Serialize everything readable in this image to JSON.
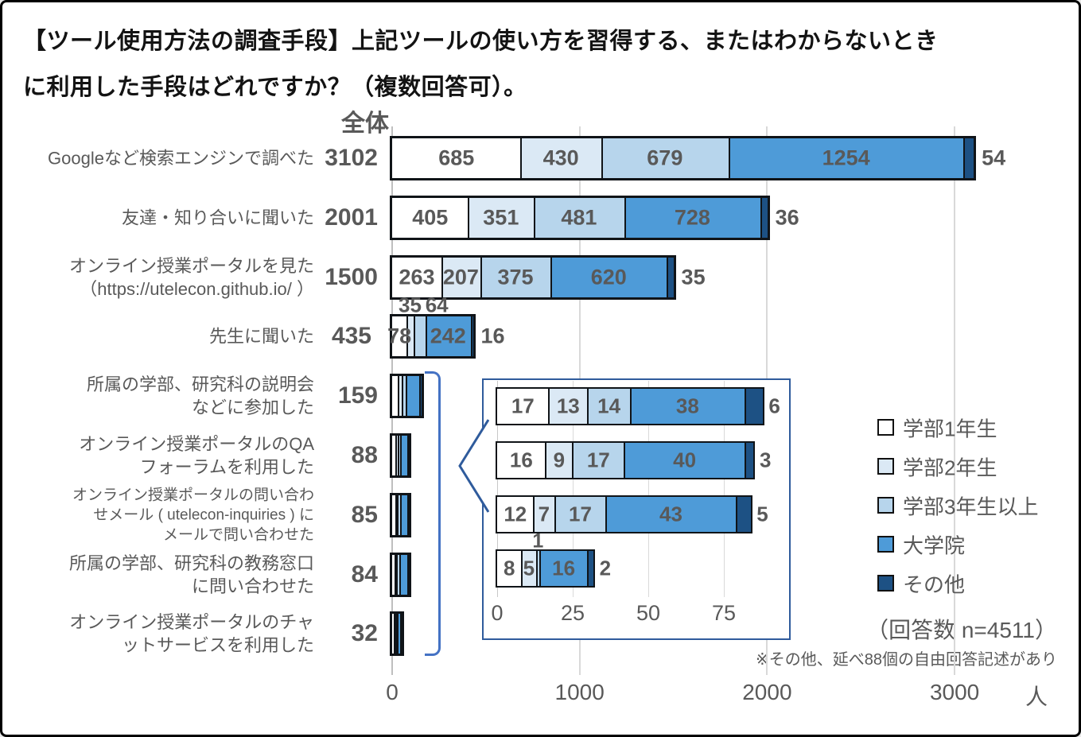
{
  "title": {
    "line1": "【ツール使用方法の調査手段】上記ツールの使い方を習得する、またはわからないとき",
    "line2": "に利用した手段はどれですか？（複数回答可）。"
  },
  "header_total": "全体",
  "respondents_note": "（回答数 n=4511）",
  "footnote": "※その他、延べ88個の自由回答記述があり",
  "colors": {
    "series": [
      "#FFFFFF",
      "#DBE9F5",
      "#B7D5EC",
      "#4E9BD8",
      "#1D5184"
    ],
    "bar_border": "#101418",
    "grid": "#D9D9D9",
    "axis_line": "#BFBFBF",
    "text_gray": "#595959",
    "bracket": "#4472C4",
    "inset_border": "#2F5B9C"
  },
  "legend": {
    "items": [
      {
        "label": "学部1年生",
        "color": "#FFFFFF"
      },
      {
        "label": "学部2年生",
        "color": "#DBE9F5"
      },
      {
        "label": "学部3年生以上",
        "color": "#B7D5EC"
      },
      {
        "label": "大学院",
        "color": "#4E9BD8"
      },
      {
        "label": "その他",
        "color": "#1D5184"
      }
    ]
  },
  "x_axis": {
    "ticks": [
      0,
      1000,
      2000,
      3000
    ],
    "unit": "人"
  },
  "chart_data": {
    "type": "bar",
    "orientation": "horizontal",
    "stacked": true,
    "series_names": [
      "学部1年生",
      "学部2年生",
      "学部3年生以上",
      "大学院",
      "その他"
    ],
    "xlim_main": [
      0,
      3000
    ],
    "xlim_inset": [
      0,
      75
    ],
    "rows": [
      {
        "label_lines": [
          "Googleなど検索エンジンで調べた"
        ],
        "total": 3102,
        "values": [
          685,
          430,
          679,
          1254,
          54
        ]
      },
      {
        "label_lines": [
          "友達・知り合いに聞いた"
        ],
        "total": 2001,
        "values": [
          405,
          351,
          481,
          728,
          36
        ]
      },
      {
        "label_lines": [
          "オンライン授業ポータルを見た",
          "（https://utelecon.github.io/ ）"
        ],
        "total": 1500,
        "values": [
          263,
          207,
          375,
          620,
          35
        ]
      },
      {
        "label_lines": [
          "先生に聞いた"
        ],
        "total": 435,
        "values": [
          78,
          35,
          64,
          242,
          16
        ]
      },
      {
        "label_lines": [
          "所属の学部、研究科の説明会",
          "などに参加した"
        ],
        "total": 159,
        "values": [
          30,
          21,
          21,
          72,
          15
        ],
        "values_estimated": true
      },
      {
        "label_lines": [
          "オンライン授業ポータルのQA",
          "フォーラムを利用した"
        ],
        "total": 88,
        "values": [
          17,
          13,
          14,
          38,
          6
        ]
      },
      {
        "label_lines": [
          "オンライン授業ポータルの問い合わ",
          "せメール ( utelecon-inquiries ) に",
          "メールで問い合わせた"
        ],
        "total": 85,
        "values": [
          16,
          9,
          17,
          40,
          3
        ],
        "small_label": true
      },
      {
        "label_lines": [
          "所属の学部、研究科の教務窓口",
          "に問い合わせた"
        ],
        "total": 84,
        "values": [
          12,
          7,
          17,
          43,
          5
        ]
      },
      {
        "label_lines": [
          "オンライン授業ポータルのチャ",
          "ットサービスを利用した"
        ],
        "total": 32,
        "values": [
          8,
          5,
          1,
          16,
          2
        ]
      }
    ],
    "inset": {
      "rows": [
        {
          "total": 88,
          "values": [
            17,
            13,
            14,
            38,
            6
          ]
        },
        {
          "total": 85,
          "values": [
            16,
            9,
            17,
            40,
            3
          ]
        },
        {
          "total": 84,
          "values": [
            12,
            7,
            17,
            43,
            5
          ]
        },
        {
          "total": 32,
          "values": [
            8,
            5,
            1,
            16,
            2
          ]
        }
      ],
      "ticks": [
        0,
        25,
        50,
        75
      ]
    }
  }
}
